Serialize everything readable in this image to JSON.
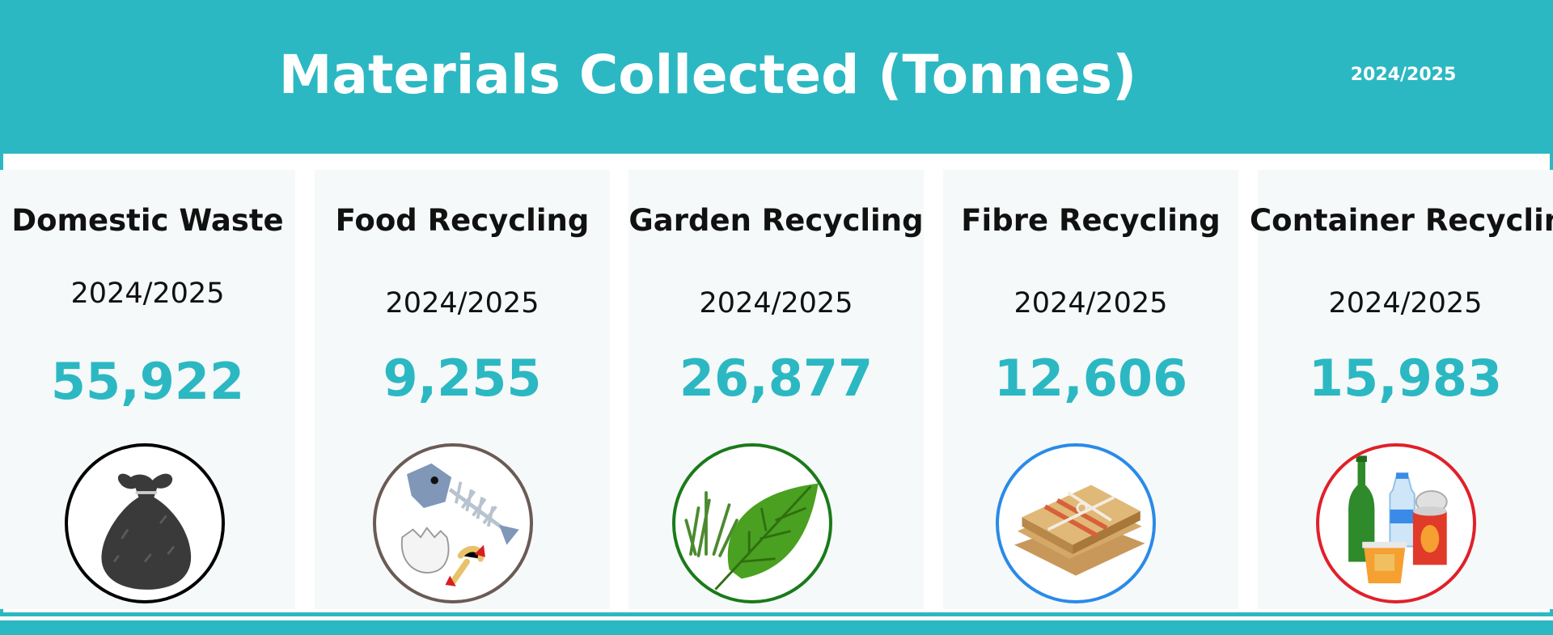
{
  "header": {
    "title": "Materials Collected (Tonnes)",
    "period": "2024/2025",
    "color": "#2cb8c2"
  },
  "cards": [
    {
      "title": "Domestic Waste",
      "year": "2024/2025",
      "value": "55,922",
      "icon": "waste-bag-icon",
      "ring_color": "#000000"
    },
    {
      "title": "Food Recycling",
      "year": "2024/2025",
      "value": "9,255",
      "icon": "food-scraps-icon",
      "ring_color": "#6b5a55"
    },
    {
      "title": "Garden Recycling",
      "year": "2024/2025",
      "value": "26,877",
      "icon": "leaf-grass-icon",
      "ring_color": "#1a7a1a"
    },
    {
      "title": "Fibre Recycling",
      "year": "2024/2025",
      "value": "12,606",
      "icon": "cardboard-bundle-icon",
      "ring_color": "#2a8ae8"
    },
    {
      "title": "Container Recycling",
      "year": "2024/2025",
      "value": "15,983",
      "icon": "bottles-cans-icon",
      "ring_color": "#e0202a"
    }
  ]
}
